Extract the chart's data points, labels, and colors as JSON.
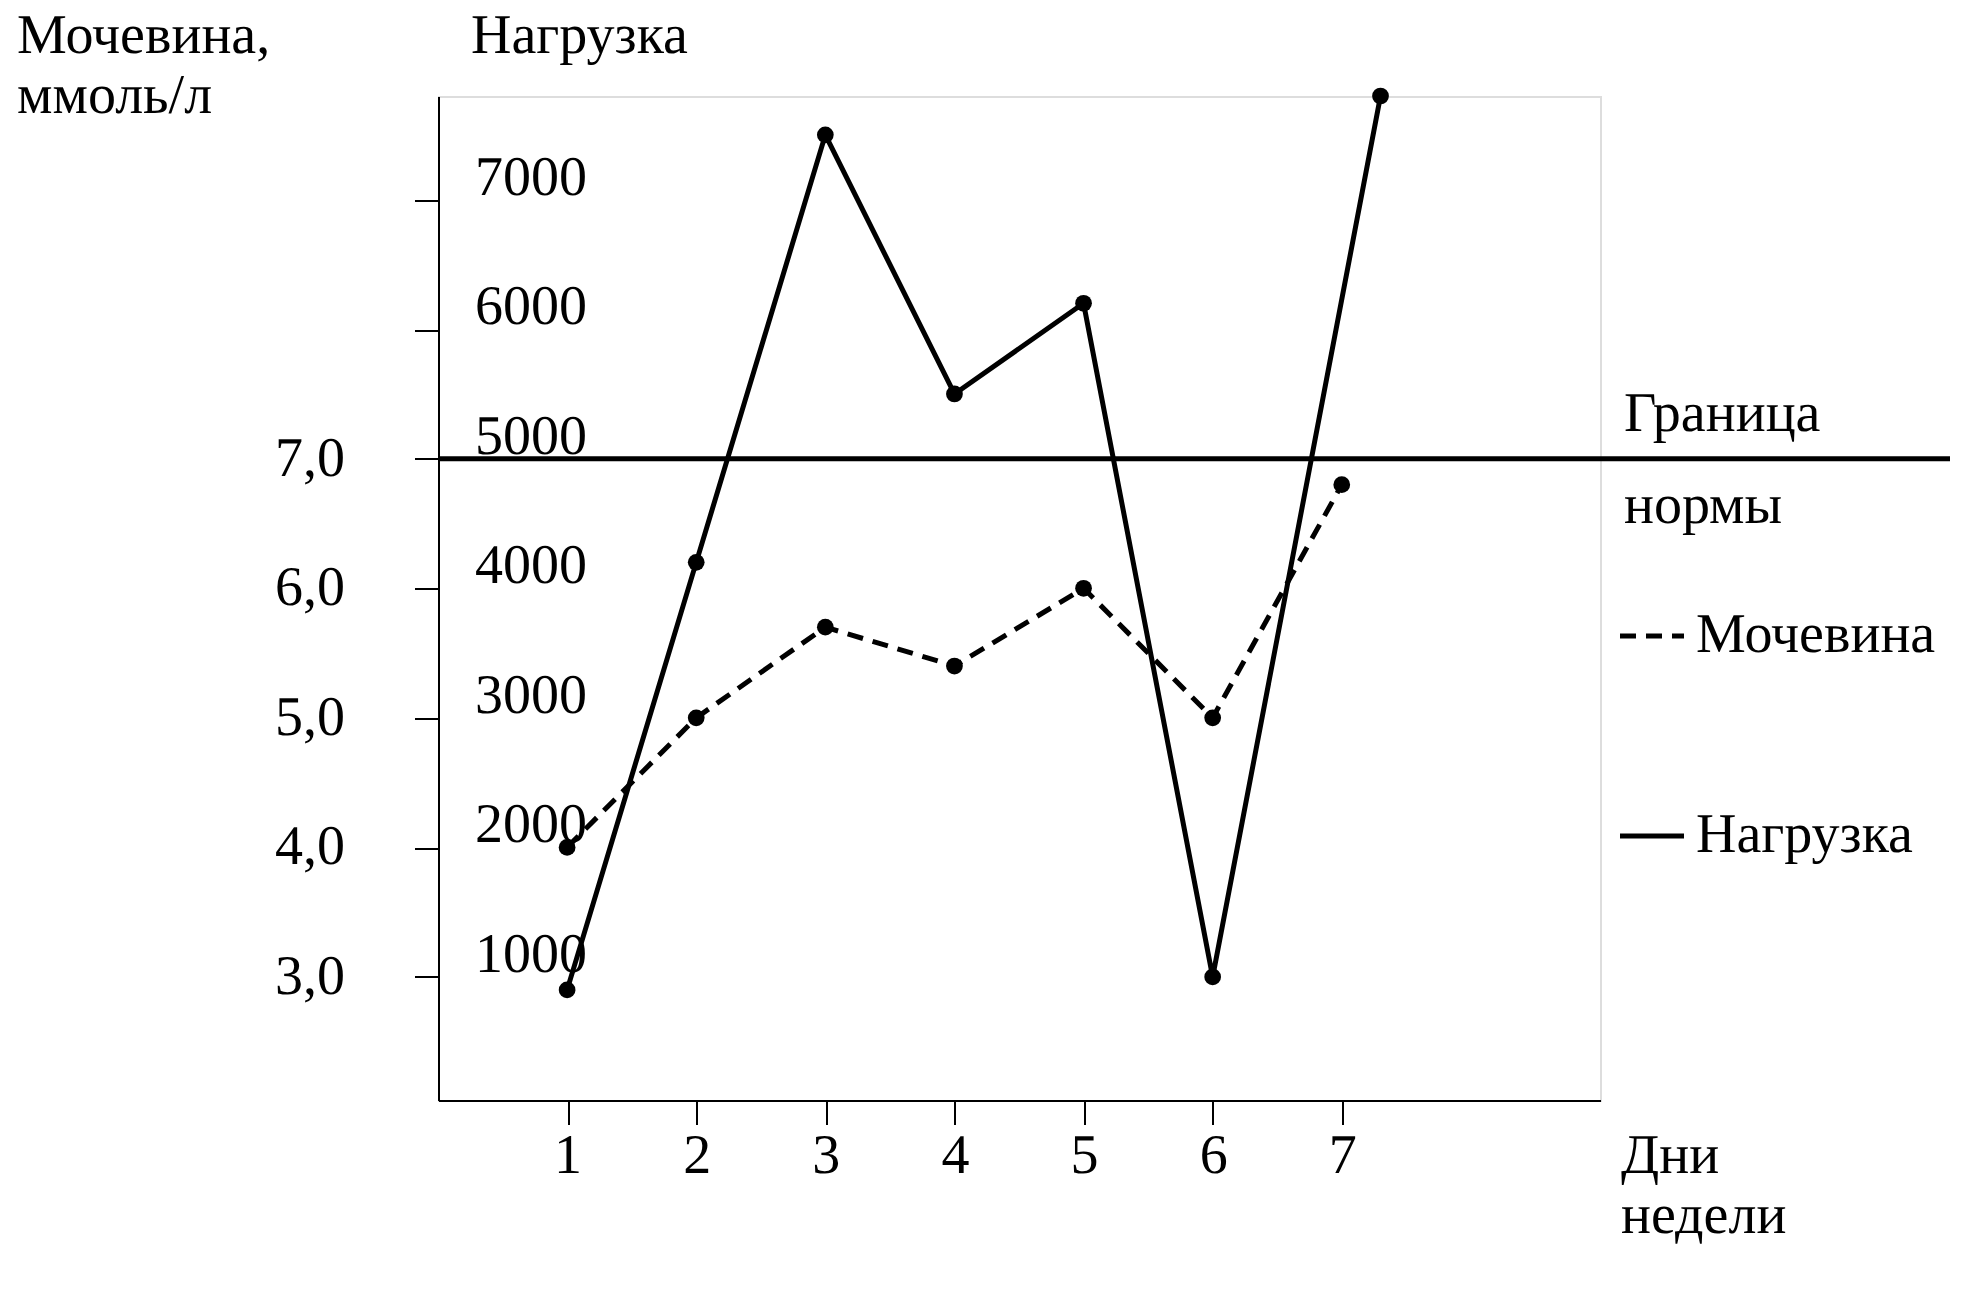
{
  "chart_data": {
    "type": "line",
    "xlabel": "Дни недели",
    "ylabel": "Нагрузка",
    "y2label": "Мочевина, ммоль/л",
    "xlim": [
      0,
      9
    ],
    "xticks": [
      1,
      2,
      3,
      4,
      5,
      6,
      7
    ],
    "ylim": [
      50,
      7800
    ],
    "yticks": [
      1000,
      2000,
      3000,
      4000,
      5000,
      6000,
      7000
    ],
    "y2lim": [
      2.05,
      9.8
    ],
    "y2ticks": [
      {
        "value": 3,
        "label": "3,0"
      },
      {
        "value": 4,
        "label": "4,0"
      },
      {
        "value": 5,
        "label": "5,0"
      },
      {
        "value": 6,
        "label": "6,0"
      },
      {
        "value": 7,
        "label": "7,0"
      }
    ],
    "series": [
      {
        "name": "Мочевина",
        "color": "#000000",
        "axis": "y2",
        "line_style": "dashed",
        "x": [
          1,
          2,
          3,
          4,
          5,
          6,
          7
        ],
        "values": [
          4.0,
          5.0,
          5.7,
          5.4,
          6.0,
          5.0,
          6.8
        ]
      },
      {
        "name": "Нагрузка",
        "color": "#000000",
        "axis": "y",
        "line_style": "solid",
        "x": [
          1,
          2,
          3,
          4,
          5,
          6,
          7.3
        ],
        "values": [
          900,
          4200,
          7500,
          5500,
          6200,
          1000,
          7800
        ]
      }
    ],
    "ref_lines": [
      {
        "axis": "y2",
        "value": 7.0,
        "label": "Граница нормы"
      }
    ],
    "marker": "circle",
    "grid": false,
    "legend": "right"
  }
}
